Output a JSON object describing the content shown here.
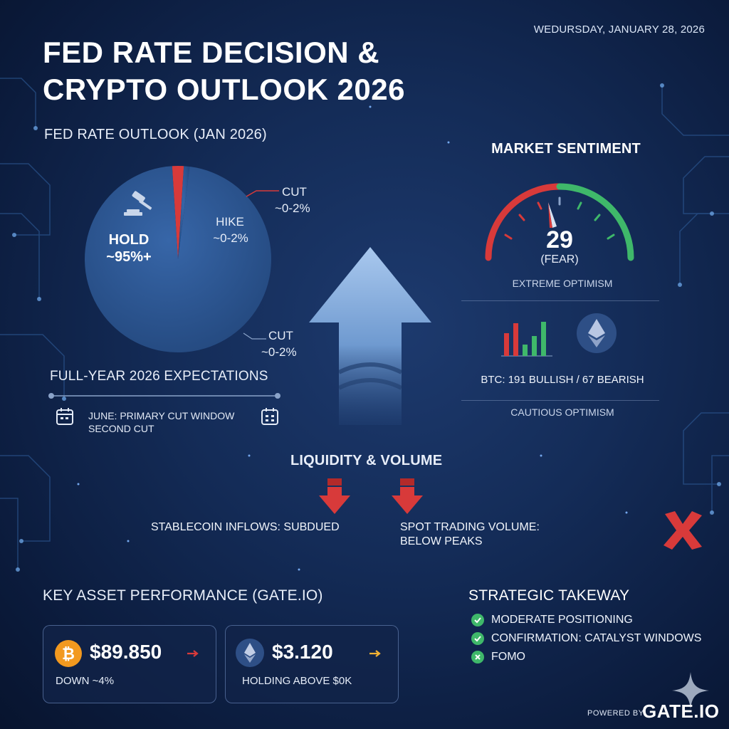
{
  "header": {
    "date": "WEDURSDAY, JANUARY 28, 2026",
    "title_line1": "FED RATE DECISION &",
    "title_line2": "CRYPTO OUTLOOK 2026"
  },
  "rate_outlook": {
    "heading": "FED RATE OUTLOOK (JAN 2026)",
    "chart_data": {
      "type": "pie",
      "title": "FED RATE OUTLOOK (JAN 2026)",
      "slices": [
        {
          "label": "HOLD",
          "value_text": "~95%+",
          "value": 97,
          "color": "#2b5592"
        },
        {
          "label": "CUT",
          "value_text": "~0-2%",
          "value": 2,
          "color": "#d83a3a"
        },
        {
          "label": "HIKE",
          "value_text": "~0-2%",
          "value": 1,
          "color": "#2b5592"
        }
      ]
    },
    "hold_label": "HOLD",
    "hold_value": "~95%+",
    "hike_label": "HIKE",
    "hike_value": "~0-2%",
    "cut_top_label": "CUT",
    "cut_top_value": "~0-2%",
    "cut_bottom_label": "CUT",
    "cut_bottom_value": "~0-2%"
  },
  "expectations": {
    "heading": "FULL-YEAR 2026 EXPECTATIONS",
    "line1": "JUNE: PRIMARY CUT WINDOW",
    "line2": "SECOND CUT"
  },
  "sentiment": {
    "heading": "MARKET SENTIMENT",
    "gauge_value": "29",
    "gauge_label": "(FEAR)",
    "gauge_caption": "EXTREME OPTIMISM",
    "btc_text": "BTC: 191 BULLISH / 67 BEARISH",
    "caption2": "CAUTIOUS OPTIMISM",
    "colors": {
      "fear": "#d83a3a",
      "greed": "#3fb86a"
    }
  },
  "liquidity": {
    "heading": "LIQUIDITY & VOLUME",
    "stablecoin": "STABLECOIN INFLOWS: SUBDUED",
    "spot_line1": "SPOT TRADING VOLUME:",
    "spot_line2": "BELOW PEAKS"
  },
  "assets": {
    "heading": "KEY ASSET PERFORMANCE (GATE.IO)",
    "btc": {
      "price": "$89.850",
      "note": "DOWN ~4%"
    },
    "eth": {
      "price": "$3.120",
      "note": "HOLDING ABOVE $0K"
    }
  },
  "takeaway": {
    "heading": "STRATEGIC TAKEWAY",
    "items": [
      "MODERATE POSITIONING",
      "CONFIRMATION: CATALYST WINDOWS",
      "FOMO"
    ]
  },
  "footer": {
    "powered": "POWERED BY",
    "brand": "GATE.IO"
  }
}
